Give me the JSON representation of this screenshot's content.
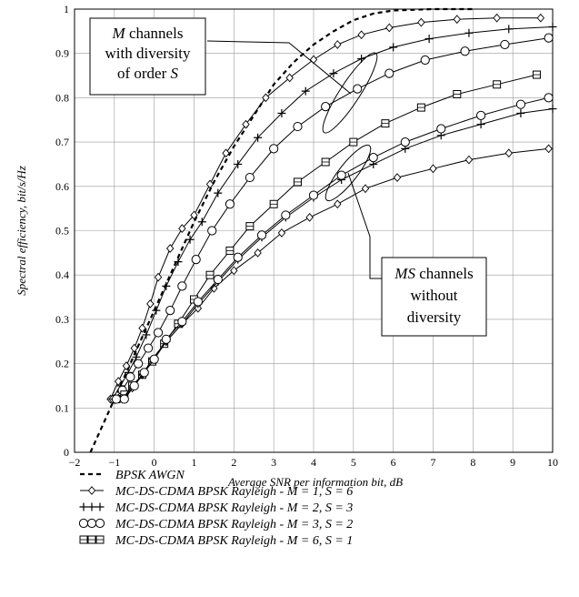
{
  "chart_data": {
    "type": "line",
    "xlabel": "Average SNR per information bit, dB",
    "ylabel": "Spectral efficiency, bit/s/Hz",
    "xlim": [
      -2,
      10
    ],
    "ylim": [
      0,
      1
    ],
    "xticks": [
      -2,
      -1,
      0,
      1,
      2,
      3,
      4,
      5,
      6,
      7,
      8,
      9,
      10
    ],
    "yticks": [
      0,
      0.1,
      0.2,
      0.3,
      0.4,
      0.5,
      0.6,
      0.7,
      0.8,
      0.9,
      1
    ],
    "grid": true,
    "legend_position": "bottom",
    "series": [
      {
        "name": "BPSK AWGN",
        "style": "dashed",
        "marker": "none",
        "x": [
          -1.6,
          -1.3,
          -1.0,
          -0.7,
          -0.4,
          0.0,
          0.5,
          1.0,
          1.5,
          2.0,
          2.5,
          3.0,
          3.5,
          4.0,
          4.5,
          5.0,
          5.5,
          6.0,
          7.0,
          8.0
        ],
        "y": [
          0.0,
          0.06,
          0.12,
          0.18,
          0.24,
          0.32,
          0.42,
          0.52,
          0.61,
          0.69,
          0.76,
          0.83,
          0.88,
          0.92,
          0.95,
          0.975,
          0.99,
          0.997,
          1.0,
          1.0
        ]
      },
      {
        "name": "MC-DS-CDMA BPSK Rayleigh - M = 1, S = 6",
        "style": "solid",
        "marker": "diamond",
        "x": [
          -1.1,
          -0.9,
          -0.7,
          -0.5,
          -0.3,
          -0.1,
          0.1,
          0.4,
          0.7,
          1.0,
          1.4,
          1.8,
          2.3,
          2.8,
          3.4,
          4.0,
          4.6,
          5.2,
          5.9,
          6.7,
          7.6,
          8.6,
          9.7
        ],
        "y": [
          0.12,
          0.16,
          0.195,
          0.235,
          0.28,
          0.335,
          0.395,
          0.46,
          0.505,
          0.535,
          0.605,
          0.675,
          0.74,
          0.8,
          0.845,
          0.886,
          0.92,
          0.942,
          0.958,
          0.97,
          0.977,
          0.98,
          0.98
        ]
      },
      {
        "name": "MC-DS-CDMA BPSK Rayleigh - M = 2, S = 3",
        "style": "solid",
        "marker": "plus",
        "x": [
          -1.05,
          -0.85,
          -0.65,
          -0.45,
          -0.2,
          0.05,
          0.3,
          0.6,
          0.9,
          1.2,
          1.6,
          2.1,
          2.6,
          3.2,
          3.8,
          4.5,
          5.2,
          6.0,
          6.9,
          7.9,
          8.9,
          10.0
        ],
        "y": [
          0.12,
          0.15,
          0.18,
          0.215,
          0.265,
          0.32,
          0.375,
          0.43,
          0.48,
          0.52,
          0.585,
          0.65,
          0.71,
          0.765,
          0.815,
          0.855,
          0.888,
          0.914,
          0.933,
          0.946,
          0.955,
          0.96
        ]
      },
      {
        "name": "MC-DS-CDMA BPSK Rayleigh - M = 3, S = 2",
        "style": "solid",
        "marker": "circle",
        "x": [
          -1.0,
          -0.8,
          -0.6,
          -0.4,
          -0.15,
          0.1,
          0.4,
          0.7,
          1.05,
          1.45,
          1.9,
          2.4,
          3.0,
          3.6,
          4.3,
          5.1,
          5.9,
          6.8,
          7.8,
          8.8,
          9.9
        ],
        "y": [
          0.12,
          0.14,
          0.17,
          0.2,
          0.235,
          0.27,
          0.32,
          0.375,
          0.435,
          0.5,
          0.56,
          0.62,
          0.685,
          0.735,
          0.78,
          0.82,
          0.855,
          0.885,
          0.905,
          0.92,
          0.935
        ]
      },
      {
        "name": "MC-DS-CDMA BPSK Rayleigh - M = 6, S = 1",
        "style": "solid",
        "marker": "square",
        "x": [
          -0.95,
          -0.75,
          -0.55,
          -0.3,
          -0.05,
          0.25,
          0.6,
          1.0,
          1.4,
          1.9,
          2.4,
          3.0,
          3.6,
          4.3,
          5.0,
          5.8,
          6.7,
          7.6,
          8.6,
          9.6
        ],
        "y": [
          0.12,
          0.13,
          0.15,
          0.175,
          0.205,
          0.245,
          0.29,
          0.345,
          0.4,
          0.455,
          0.51,
          0.56,
          0.61,
          0.655,
          0.7,
          0.742,
          0.778,
          0.808,
          0.83,
          0.852
        ]
      },
      {
        "name": "",
        "style": "solid",
        "marker": "diamond",
        "x": [
          -1.05,
          -0.8,
          -0.55,
          -0.3,
          0.0,
          0.3,
          0.7,
          1.1,
          1.5,
          2.0,
          2.6,
          3.2,
          3.9,
          4.6,
          5.3,
          6.1,
          7.0,
          7.9,
          8.9,
          9.9
        ],
        "y": [
          0.12,
          0.12,
          0.145,
          0.175,
          0.21,
          0.25,
          0.29,
          0.325,
          0.37,
          0.41,
          0.45,
          0.495,
          0.53,
          0.56,
          0.595,
          0.62,
          0.64,
          0.66,
          0.675,
          0.685
        ]
      },
      {
        "name": "",
        "style": "solid",
        "marker": "plus",
        "x": [
          -1.0,
          -0.8,
          -0.55,
          -0.3,
          -0.05,
          0.3,
          0.7,
          1.1,
          1.6,
          2.1,
          2.7,
          3.3,
          4.0,
          4.7,
          5.5,
          6.3,
          7.2,
          8.2,
          9.2,
          10.0
        ],
        "y": [
          0.12,
          0.12,
          0.15,
          0.175,
          0.21,
          0.25,
          0.29,
          0.335,
          0.385,
          0.435,
          0.485,
          0.53,
          0.575,
          0.615,
          0.65,
          0.685,
          0.715,
          0.74,
          0.765,
          0.775
        ]
      },
      {
        "name": "",
        "style": "solid",
        "marker": "circle",
        "x": [
          -0.95,
          -0.75,
          -0.5,
          -0.25,
          0.0,
          0.3,
          0.7,
          1.1,
          1.6,
          2.1,
          2.7,
          3.3,
          4.0,
          4.7,
          5.5,
          6.3,
          7.2,
          8.2,
          9.2,
          9.9
        ],
        "y": [
          0.12,
          0.12,
          0.15,
          0.18,
          0.21,
          0.255,
          0.295,
          0.34,
          0.39,
          0.44,
          0.49,
          0.535,
          0.58,
          0.625,
          0.665,
          0.7,
          0.73,
          0.76,
          0.785,
          0.8
        ]
      }
    ],
    "annotations": [
      {
        "lines": [
          "M channels",
          "with diversity",
          "of order S"
        ],
        "emphasis": [
          "M",
          "S"
        ]
      },
      {
        "lines": [
          "MS channels",
          "without",
          "diversity"
        ],
        "emphasis": [
          "MS"
        ]
      }
    ],
    "legend": [
      {
        "marker": "dashed",
        "label": "BPSK AWGN"
      },
      {
        "marker": "diamond",
        "label": "MC-DS-CDMA BPSK Rayleigh - M = 1, S = 6"
      },
      {
        "marker": "plus",
        "label": "MC-DS-CDMA BPSK Rayleigh - M = 2, S = 3"
      },
      {
        "marker": "circle",
        "label": "MC-DS-CDMA BPSK Rayleigh - M = 3, S = 2"
      },
      {
        "marker": "square",
        "label": "MC-DS-CDMA BPSK Rayleigh - M = 6, S = 1"
      }
    ]
  }
}
